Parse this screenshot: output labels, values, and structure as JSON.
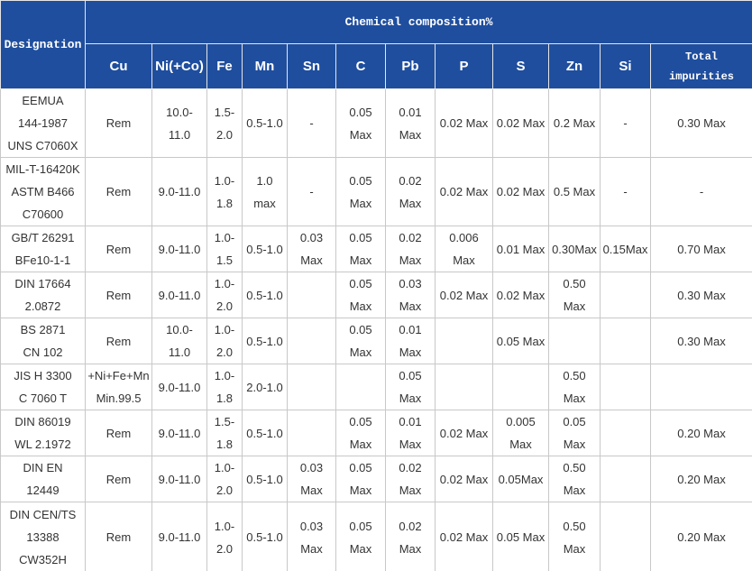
{
  "table": {
    "designation_header": "Designation",
    "group_header": "Chemical composition%",
    "columns": [
      "Cu",
      "Ni(+Co)",
      "Fe",
      "Mn",
      "Sn",
      "C",
      "Pb",
      "P",
      "S",
      "Zn",
      "Si",
      "Total impurities"
    ],
    "rows": [
      [
        "EEMUA\n144-1987\nUNS C7060X",
        "Rem",
        "10.0-\n11.0",
        "1.5-\n2.0",
        "0.5-1.0",
        "-",
        "0.05\nMax",
        "0.01\nMax",
        "0.02 Max",
        "0.02 Max",
        "0.2 Max",
        "-",
        "0.30 Max"
      ],
      [
        "MIL-T-16420K\nASTM B466\nC70600",
        "Rem",
        "9.0-11.0",
        "1.0-\n1.8",
        "1.0\nmax",
        "-",
        "0.05\nMax",
        "0.02\nMax",
        "0.02 Max",
        "0.02 Max",
        "0.5 Max",
        "-",
        "-"
      ],
      [
        "GB/T 26291\nBFe10-1-1",
        "Rem",
        "9.0-11.0",
        "1.0-\n1.5",
        "0.5-1.0",
        "0.03\nMax",
        "0.05\nMax",
        "0.02\nMax",
        "0.006\nMax",
        "0.01 Max",
        "0.30Max",
        "0.15Max",
        "0.70 Max"
      ],
      [
        "DIN 17664\n2.0872",
        "Rem",
        "9.0-11.0",
        "1.0-\n2.0",
        "0.5-1.0",
        null,
        "0.05\nMax",
        "0.03\nMax",
        "0.02 Max",
        "0.02 Max",
        "0.50\nMax",
        null,
        "0.30 Max"
      ],
      [
        "BS 2871\nCN 102",
        "Rem",
        "10.0-\n11.0",
        "1.0-\n2.0",
        "0.5-1.0",
        null,
        "0.05\nMax",
        "0.01\nMax",
        null,
        "0.05 Max",
        null,
        null,
        "0.30 Max"
      ],
      [
        "JIS H 3300\nC 7060 T",
        "+Ni+Fe+Mn\nMin.99.5",
        "9.0-11.0",
        "1.0-\n1.8",
        "2.0-1.0",
        null,
        null,
        "0.05\nMax",
        null,
        null,
        "0.50\nMax",
        null,
        null
      ],
      [
        "DIN 86019\nWL 2.1972",
        "Rem",
        "9.0-11.0",
        "1.5-\n1.8",
        "0.5-1.0",
        null,
        "0.05\nMax",
        "0.01\nMax",
        "0.02 Max",
        "0.005\nMax",
        "0.05\nMax",
        null,
        "0.20 Max"
      ],
      [
        "DIN EN\n12449",
        "Rem",
        "9.0-11.0",
        "1.0-\n2.0",
        "0.5-1.0",
        "0.03\nMax",
        "0.05\nMax",
        "0.02\nMax",
        "0.02 Max",
        "0.05Max",
        "0.50\nMax",
        null,
        "0.20 Max"
      ],
      [
        "DIN CEN/TS\n13388\nCW352H",
        "Rem",
        "9.0-11.0",
        "1.0-\n2.0",
        "0.5-1.0",
        "0.03\nMax",
        "0.05\nMax",
        "0.02\nMax",
        "0.02 Max",
        "0.05 Max",
        "0.50\nMax",
        null,
        "0.20 Max"
      ]
    ]
  }
}
